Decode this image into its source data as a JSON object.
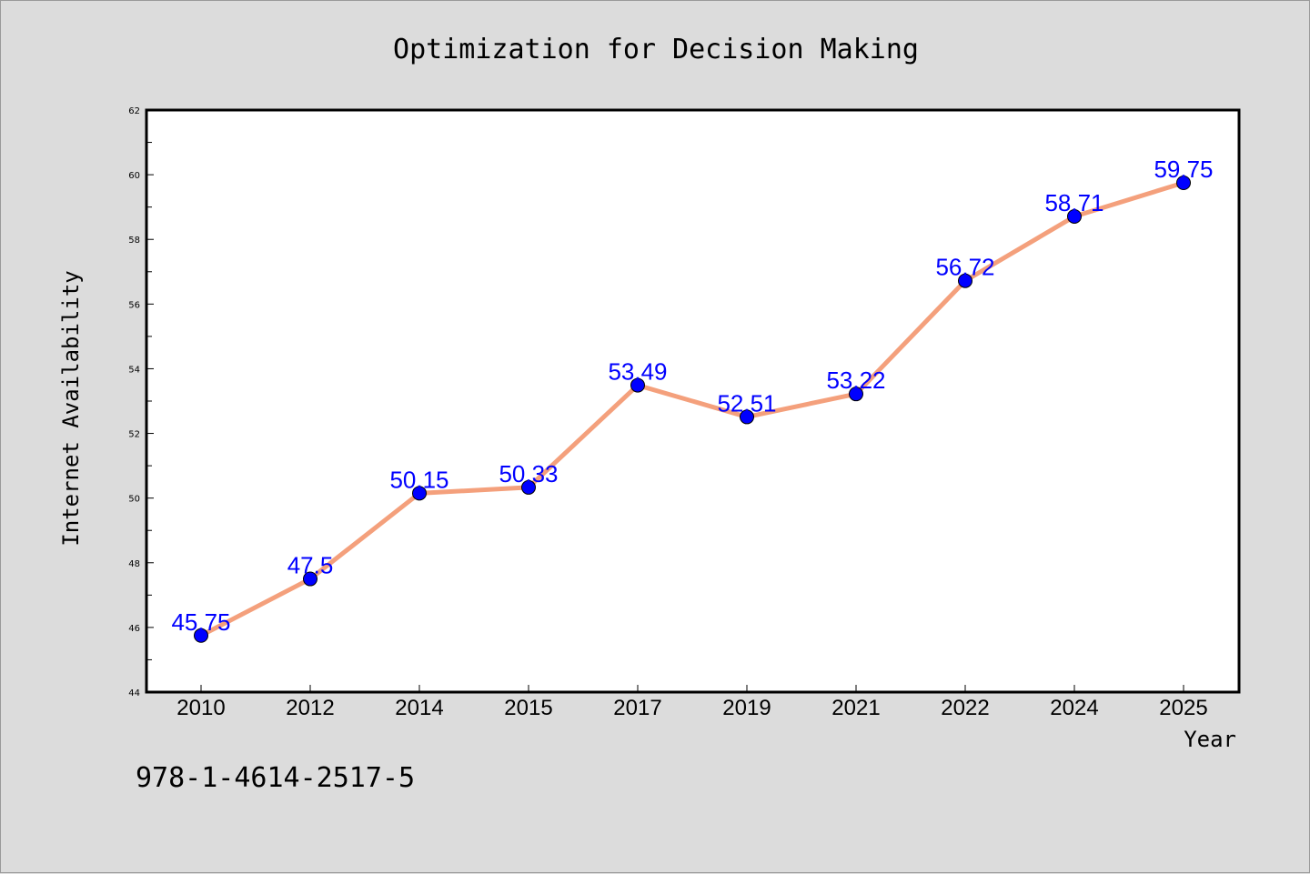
{
  "chart_data": {
    "type": "line",
    "title": "Optimization for Decision Making",
    "xlabel": "Year",
    "ylabel": "Internet Availability",
    "categories": [
      "2010",
      "2012",
      "2014",
      "2015",
      "2017",
      "2019",
      "2021",
      "2022",
      "2024",
      "2025"
    ],
    "series": [
      {
        "values": [
          45.75,
          47.5,
          50.15,
          50.33,
          53.49,
          52.51,
          53.22,
          56.72,
          58.71,
          59.75
        ],
        "labels": [
          "45.75",
          "47.5",
          "50.15",
          "50.33",
          "53.49",
          "52.51",
          "53.22",
          "56.72",
          "58.71",
          "59.75"
        ],
        "line_color": "#f4a07c",
        "marker_color": "#0000ff"
      }
    ],
    "ylim": [
      44,
      62
    ],
    "yticks": [
      "44",
      "46",
      "48",
      "50",
      "52",
      "54",
      "56",
      "58",
      "60",
      "62"
    ],
    "grid": false,
    "legend": "none",
    "label_color": "#0000ff"
  },
  "footer": {
    "isbn": "978-1-4614-2517-5"
  }
}
